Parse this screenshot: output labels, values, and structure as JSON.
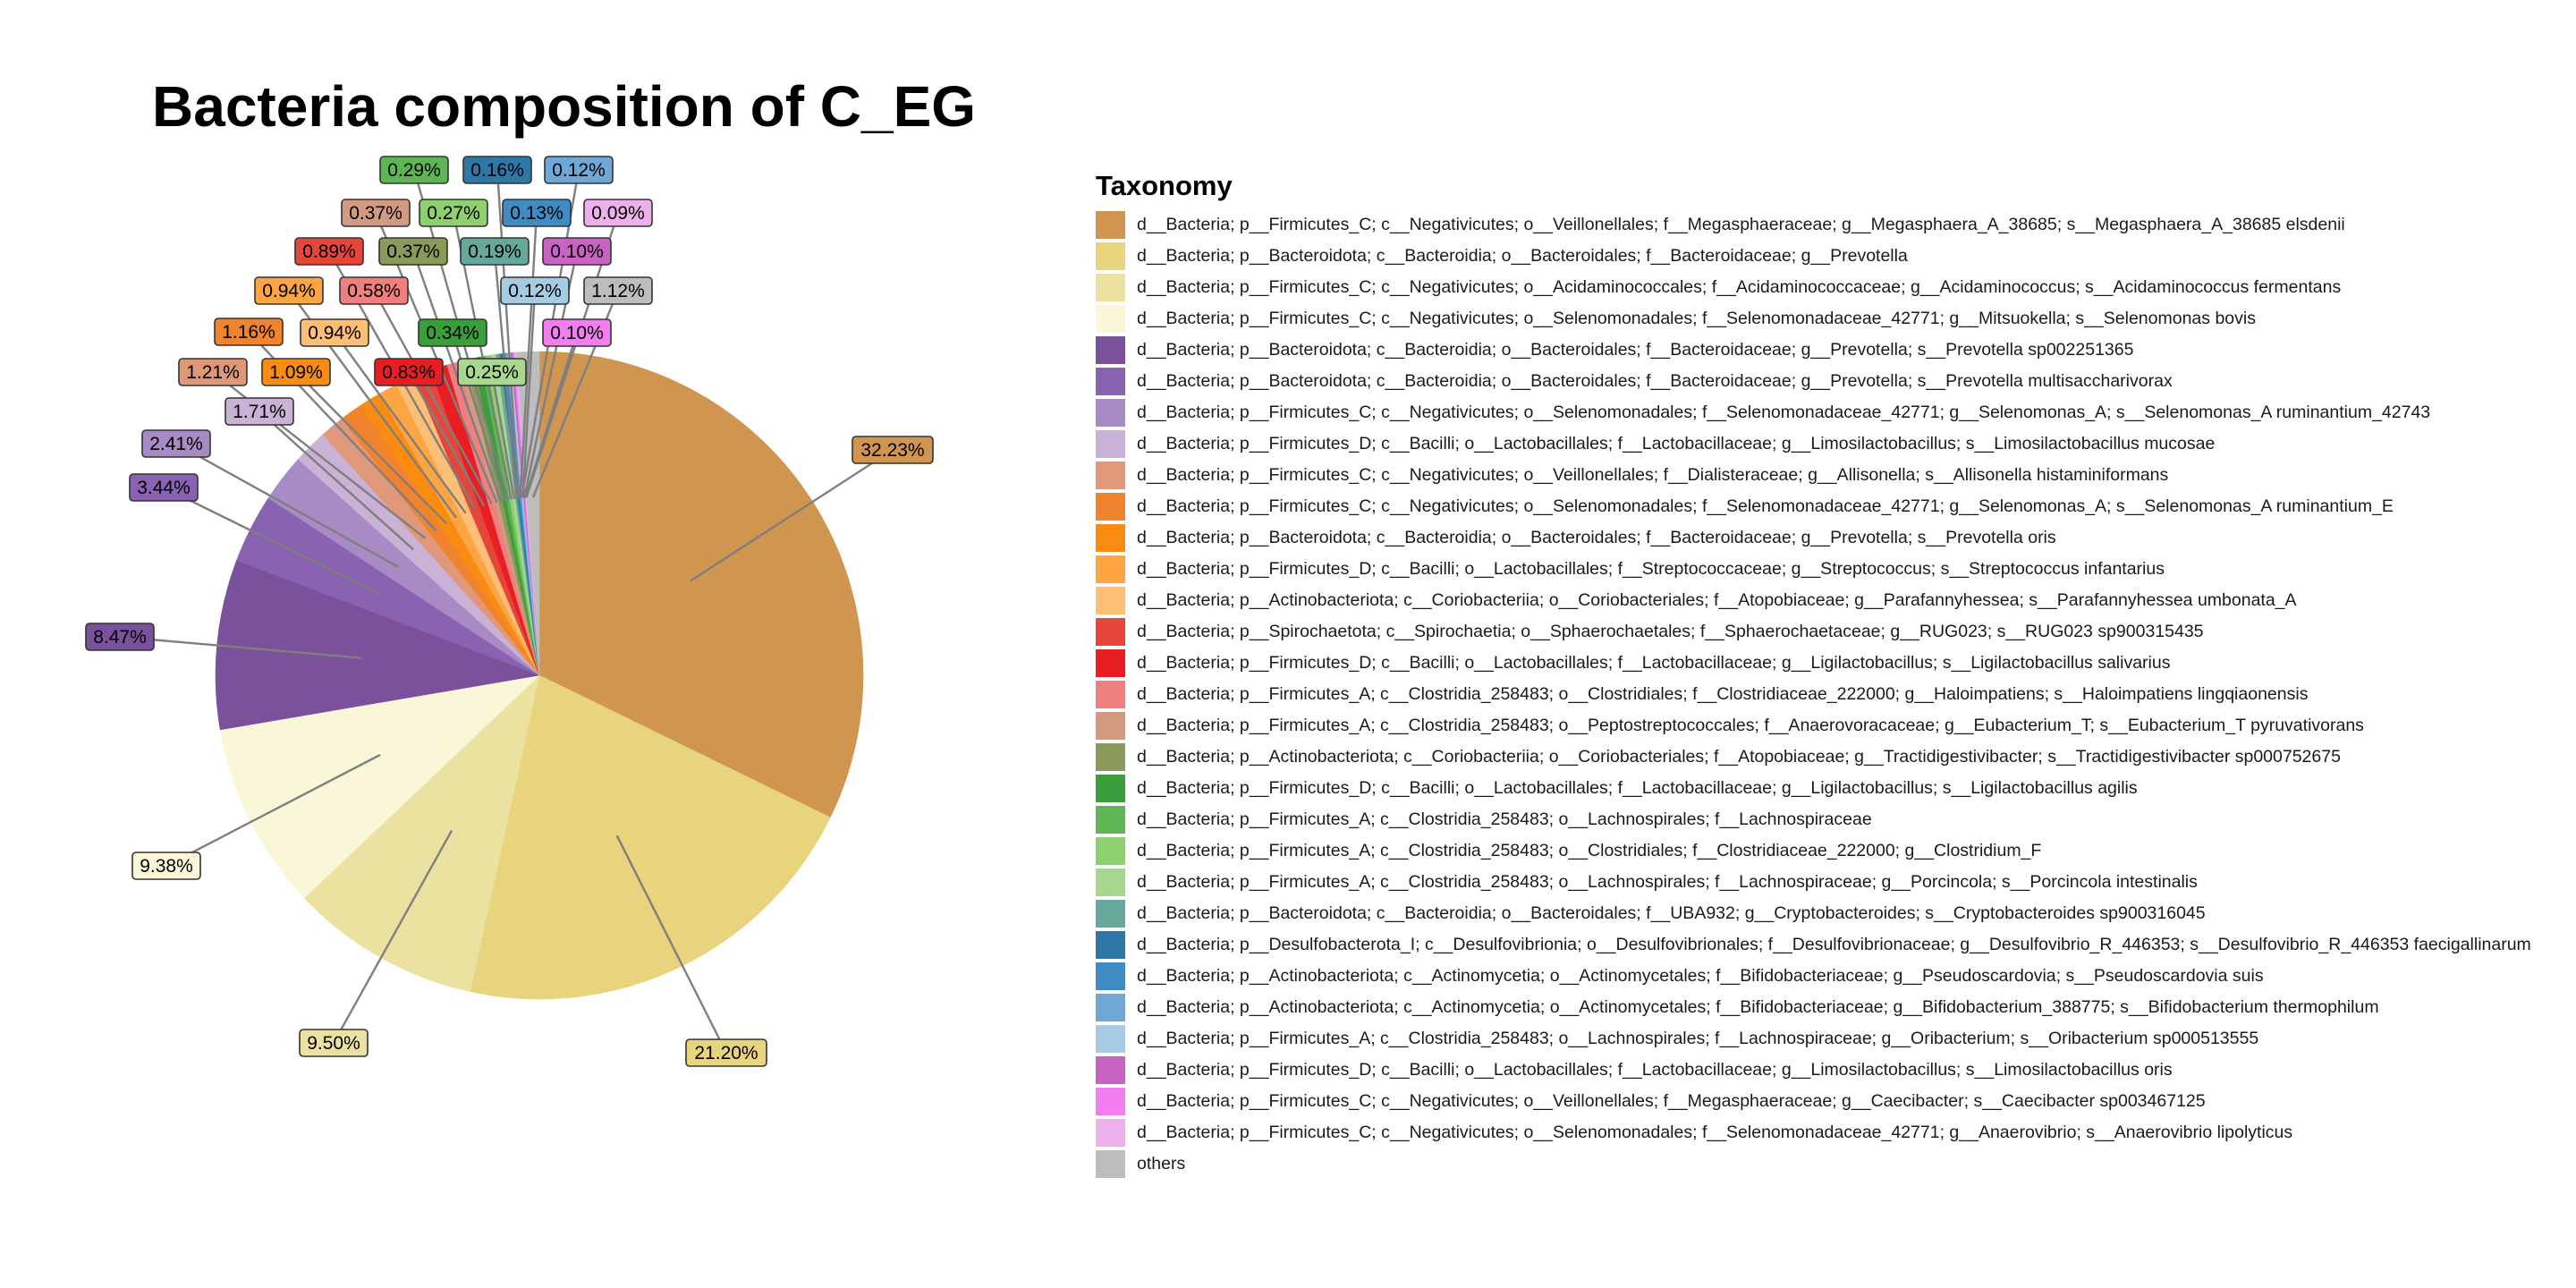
{
  "chart_data": {
    "type": "pie",
    "title": "Bacteria composition of C_EG",
    "legend_title": "Taxonomy",
    "legend_position": "right",
    "slices": [
      {
        "label": "d__Bacteria; p__Firmicutes_C; c__Negativicutes; o__Veillonellales; f__Megasphaeraceae; g__Megasphaera_A_38685; s__Megasphaera_A_38685 elsdenii",
        "value": 32.23,
        "value_label": "32.23%",
        "color": "#D0954F"
      },
      {
        "label": "d__Bacteria; p__Bacteroidota; c__Bacteroidia; o__Bacteroidales; f__Bacteroidaceae; g__Prevotella",
        "value": 21.2,
        "value_label": "21.20%",
        "color": "#E8D47C"
      },
      {
        "label": "d__Bacteria; p__Firmicutes_C; c__Negativicutes; o__Acidaminococcales; f__Acidaminococcaceae; g__Acidaminococcus; s__Acidaminococcus fermentans",
        "value": 9.5,
        "value_label": "9.50%",
        "color": "#EBE1A0"
      },
      {
        "label": "d__Bacteria; p__Firmicutes_C; c__Negativicutes; o__Selenomonadales; f__Selenomonadaceae_42771; g__Mitsuokella; s__Selenomonas bovis",
        "value": 9.38,
        "value_label": "9.38%",
        "color": "#F9F7D8"
      },
      {
        "label": "d__Bacteria; p__Bacteroidota; c__Bacteroidia; o__Bacteroidales; f__Bacteroidaceae; g__Prevotella; s__Prevotella sp002251365",
        "value": 8.47,
        "value_label": "8.47%",
        "color": "#7A519A"
      },
      {
        "label": "d__Bacteria; p__Bacteroidota; c__Bacteroidia; o__Bacteroidales; f__Bacteroidaceae; g__Prevotella; s__Prevotella multisaccharivorax",
        "value": 3.44,
        "value_label": "3.44%",
        "color": "#8A62B2"
      },
      {
        "label": "d__Bacteria; p__Firmicutes_C; c__Negativicutes; o__Selenomonadales; f__Selenomonadaceae_42771; g__Selenomonas_A; s__Selenomonas_A ruminantium_42743",
        "value": 2.41,
        "value_label": "2.41%",
        "color": "#A88BC5"
      },
      {
        "label": "d__Bacteria; p__Firmicutes_D; c__Bacilli; o__Lactobacillales; f__Lactobacillaceae; g__Limosilactobacillus; s__Limosilactobacillus mucosae",
        "value": 1.71,
        "value_label": "1.71%",
        "color": "#C9B2D6"
      },
      {
        "label": "d__Bacteria; p__Firmicutes_C; c__Negativicutes; o__Veillonellales; f__Dialisteraceae; g__Allisonella; s__Allisonella histaminiformans",
        "value": 1.21,
        "value_label": "1.21%",
        "color": "#E0987A"
      },
      {
        "label": "d__Bacteria; p__Firmicutes_C; c__Negativicutes; o__Selenomonadales; f__Selenomonadaceae_42771; g__Selenomonas_A; s__Selenomonas_A ruminantium_E",
        "value": 1.16,
        "value_label": "1.16%",
        "color": "#F0832E"
      },
      {
        "label": "d__Bacteria; p__Bacteroidota; c__Bacteroidia; o__Bacteroidales; f__Bacteroidaceae; g__Prevotella; s__Prevotella oris",
        "value": 1.09,
        "value_label": "1.09%",
        "color": "#FA8C12"
      },
      {
        "label": "d__Bacteria; p__Firmicutes_D; c__Bacilli; o__Lactobacillales; f__Streptococcaceae; g__Streptococcus; s__Streptococcus infantarius",
        "value": 0.94,
        "value_label": "0.94%",
        "color": "#FCA542"
      },
      {
        "label": "d__Bacteria; p__Actinobacteriota; c__Coriobacteriia; o__Coriobacteriales; f__Atopobiaceae; g__Parafannyhessea; s__Parafannyhessea umbonata_A",
        "value": 0.94,
        "value_label": "0.94%",
        "color": "#FDBE76"
      },
      {
        "label": "d__Bacteria; p__Spirochaetota; c__Spirochaetia; o__Sphaerochaetales; f__Sphaerochaetaceae; g__RUG023; s__RUG023 sp900315435",
        "value": 0.89,
        "value_label": "0.89%",
        "color": "#E4473A"
      },
      {
        "label": "d__Bacteria; p__Firmicutes_D; c__Bacilli; o__Lactobacillales; f__Lactobacillaceae; g__Ligilactobacillus; s__Ligilactobacillus salivarius",
        "value": 0.83,
        "value_label": "0.83%",
        "color": "#E81E23"
      },
      {
        "label": "d__Bacteria; p__Firmicutes_A; c__Clostridia_258483; o__Clostridiales; f__Clostridiaceae_222000; g__Haloimpatiens; s__Haloimpatiens lingqiaonensis",
        "value": 0.58,
        "value_label": "0.58%",
        "color": "#F08080"
      },
      {
        "label": "d__Bacteria; p__Firmicutes_A; c__Clostridia_258483; o__Peptostreptococcales; f__Anaerovoracaceae; g__Eubacterium_T; s__Eubacterium_T pyruvativorans",
        "value": 0.37,
        "value_label": "0.37%",
        "color": "#D39A82"
      },
      {
        "label": "d__Bacteria; p__Actinobacteriota; c__Coriobacteriia; o__Coriobacteriales; f__Atopobiaceae; g__Tractidigestivibacter; s__Tractidigestivibacter sp000752675",
        "value": 0.37,
        "value_label": "0.37%",
        "color": "#8A9A5B"
      },
      {
        "label": "d__Bacteria; p__Firmicutes_D; c__Bacilli; o__Lactobacillales; f__Lactobacillaceae; g__Ligilactobacillus; s__Ligilactobacillus agilis",
        "value": 0.34,
        "value_label": "0.34%",
        "color": "#3A9E3A"
      },
      {
        "label": "d__Bacteria; p__Firmicutes_A; c__Clostridia_258483; o__Lachnospirales; f__Lachnospiraceae",
        "value": 0.29,
        "value_label": "0.29%",
        "color": "#5DB553"
      },
      {
        "label": "d__Bacteria; p__Firmicutes_A; c__Clostridia_258483; o__Clostridiales; f__Clostridiaceae_222000; g__Clostridium_F",
        "value": 0.27,
        "value_label": "0.27%",
        "color": "#8ECF6E"
      },
      {
        "label": "d__Bacteria; p__Firmicutes_A; c__Clostridia_258483; o__Lachnospirales; f__Lachnospiraceae; g__Porcincola; s__Porcincola intestinalis",
        "value": 0.25,
        "value_label": "0.25%",
        "color": "#A8D890"
      },
      {
        "label": "d__Bacteria; p__Bacteroidota; c__Bacteroidia; o__Bacteroidales; f__UBA932; g__Cryptobacteroides; s__Cryptobacteroides sp900316045",
        "value": 0.19,
        "value_label": "0.19%",
        "color": "#66A89A"
      },
      {
        "label": "d__Bacteria; p__Desulfobacterota_I; c__Desulfovibrionia; o__Desulfovibrionales; f__Desulfovibrionaceae; g__Desulfovibrio_R_446353; s__Desulfovibrio_R_446353 faecigallinarum",
        "value": 0.16,
        "value_label": "0.16%",
        "color": "#2E78A8"
      },
      {
        "label": "d__Bacteria; p__Actinobacteriota; c__Actinomycetia; o__Actinomycetales; f__Bifidobacteriaceae; g__Pseudoscardovia; s__Pseudoscardovia suis",
        "value": 0.13,
        "value_label": "0.13%",
        "color": "#3F8BC4"
      },
      {
        "label": "d__Bacteria; p__Actinobacteriota; c__Actinomycetia; o__Actinomycetales; f__Bifidobacteriaceae; g__Bifidobacterium_388775; s__Bifidobacterium thermophilum",
        "value": 0.12,
        "value_label": "0.12%",
        "color": "#6FA8D6"
      },
      {
        "label": "d__Bacteria; p__Firmicutes_A; c__Clostridia_258483; o__Lachnospirales; f__Lachnospiraceae; g__Oribacterium; s__Oribacterium sp000513555",
        "value": 0.12,
        "value_label": "0.12%",
        "color": "#A6CCE4"
      },
      {
        "label": "d__Bacteria; p__Firmicutes_D; c__Bacilli; o__Lactobacillales; f__Lactobacillaceae; g__Limosilactobacillus; s__Limosilactobacillus oris",
        "value": 0.1,
        "value_label": "0.10%",
        "color": "#C863C4"
      },
      {
        "label": "d__Bacteria; p__Firmicutes_C; c__Negativicutes; o__Veillonellales; f__Megasphaeraceae; g__Caecibacter; s__Caecibacter sp003467125",
        "value": 0.1,
        "value_label": "0.10%",
        "color": "#F27EF0"
      },
      {
        "label": "d__Bacteria; p__Firmicutes_C; c__Negativicutes; o__Selenomonadales; f__Selenomonadaceae_42771; g__Anaerovibrio; s__Anaerovibrio lipolyticus",
        "value": 0.09,
        "value_label": "0.09%",
        "color": "#EDB0EC"
      },
      {
        "label": "others",
        "value": 1.12,
        "value_label": "1.12%",
        "color": "#BDBDBD"
      }
    ]
  }
}
